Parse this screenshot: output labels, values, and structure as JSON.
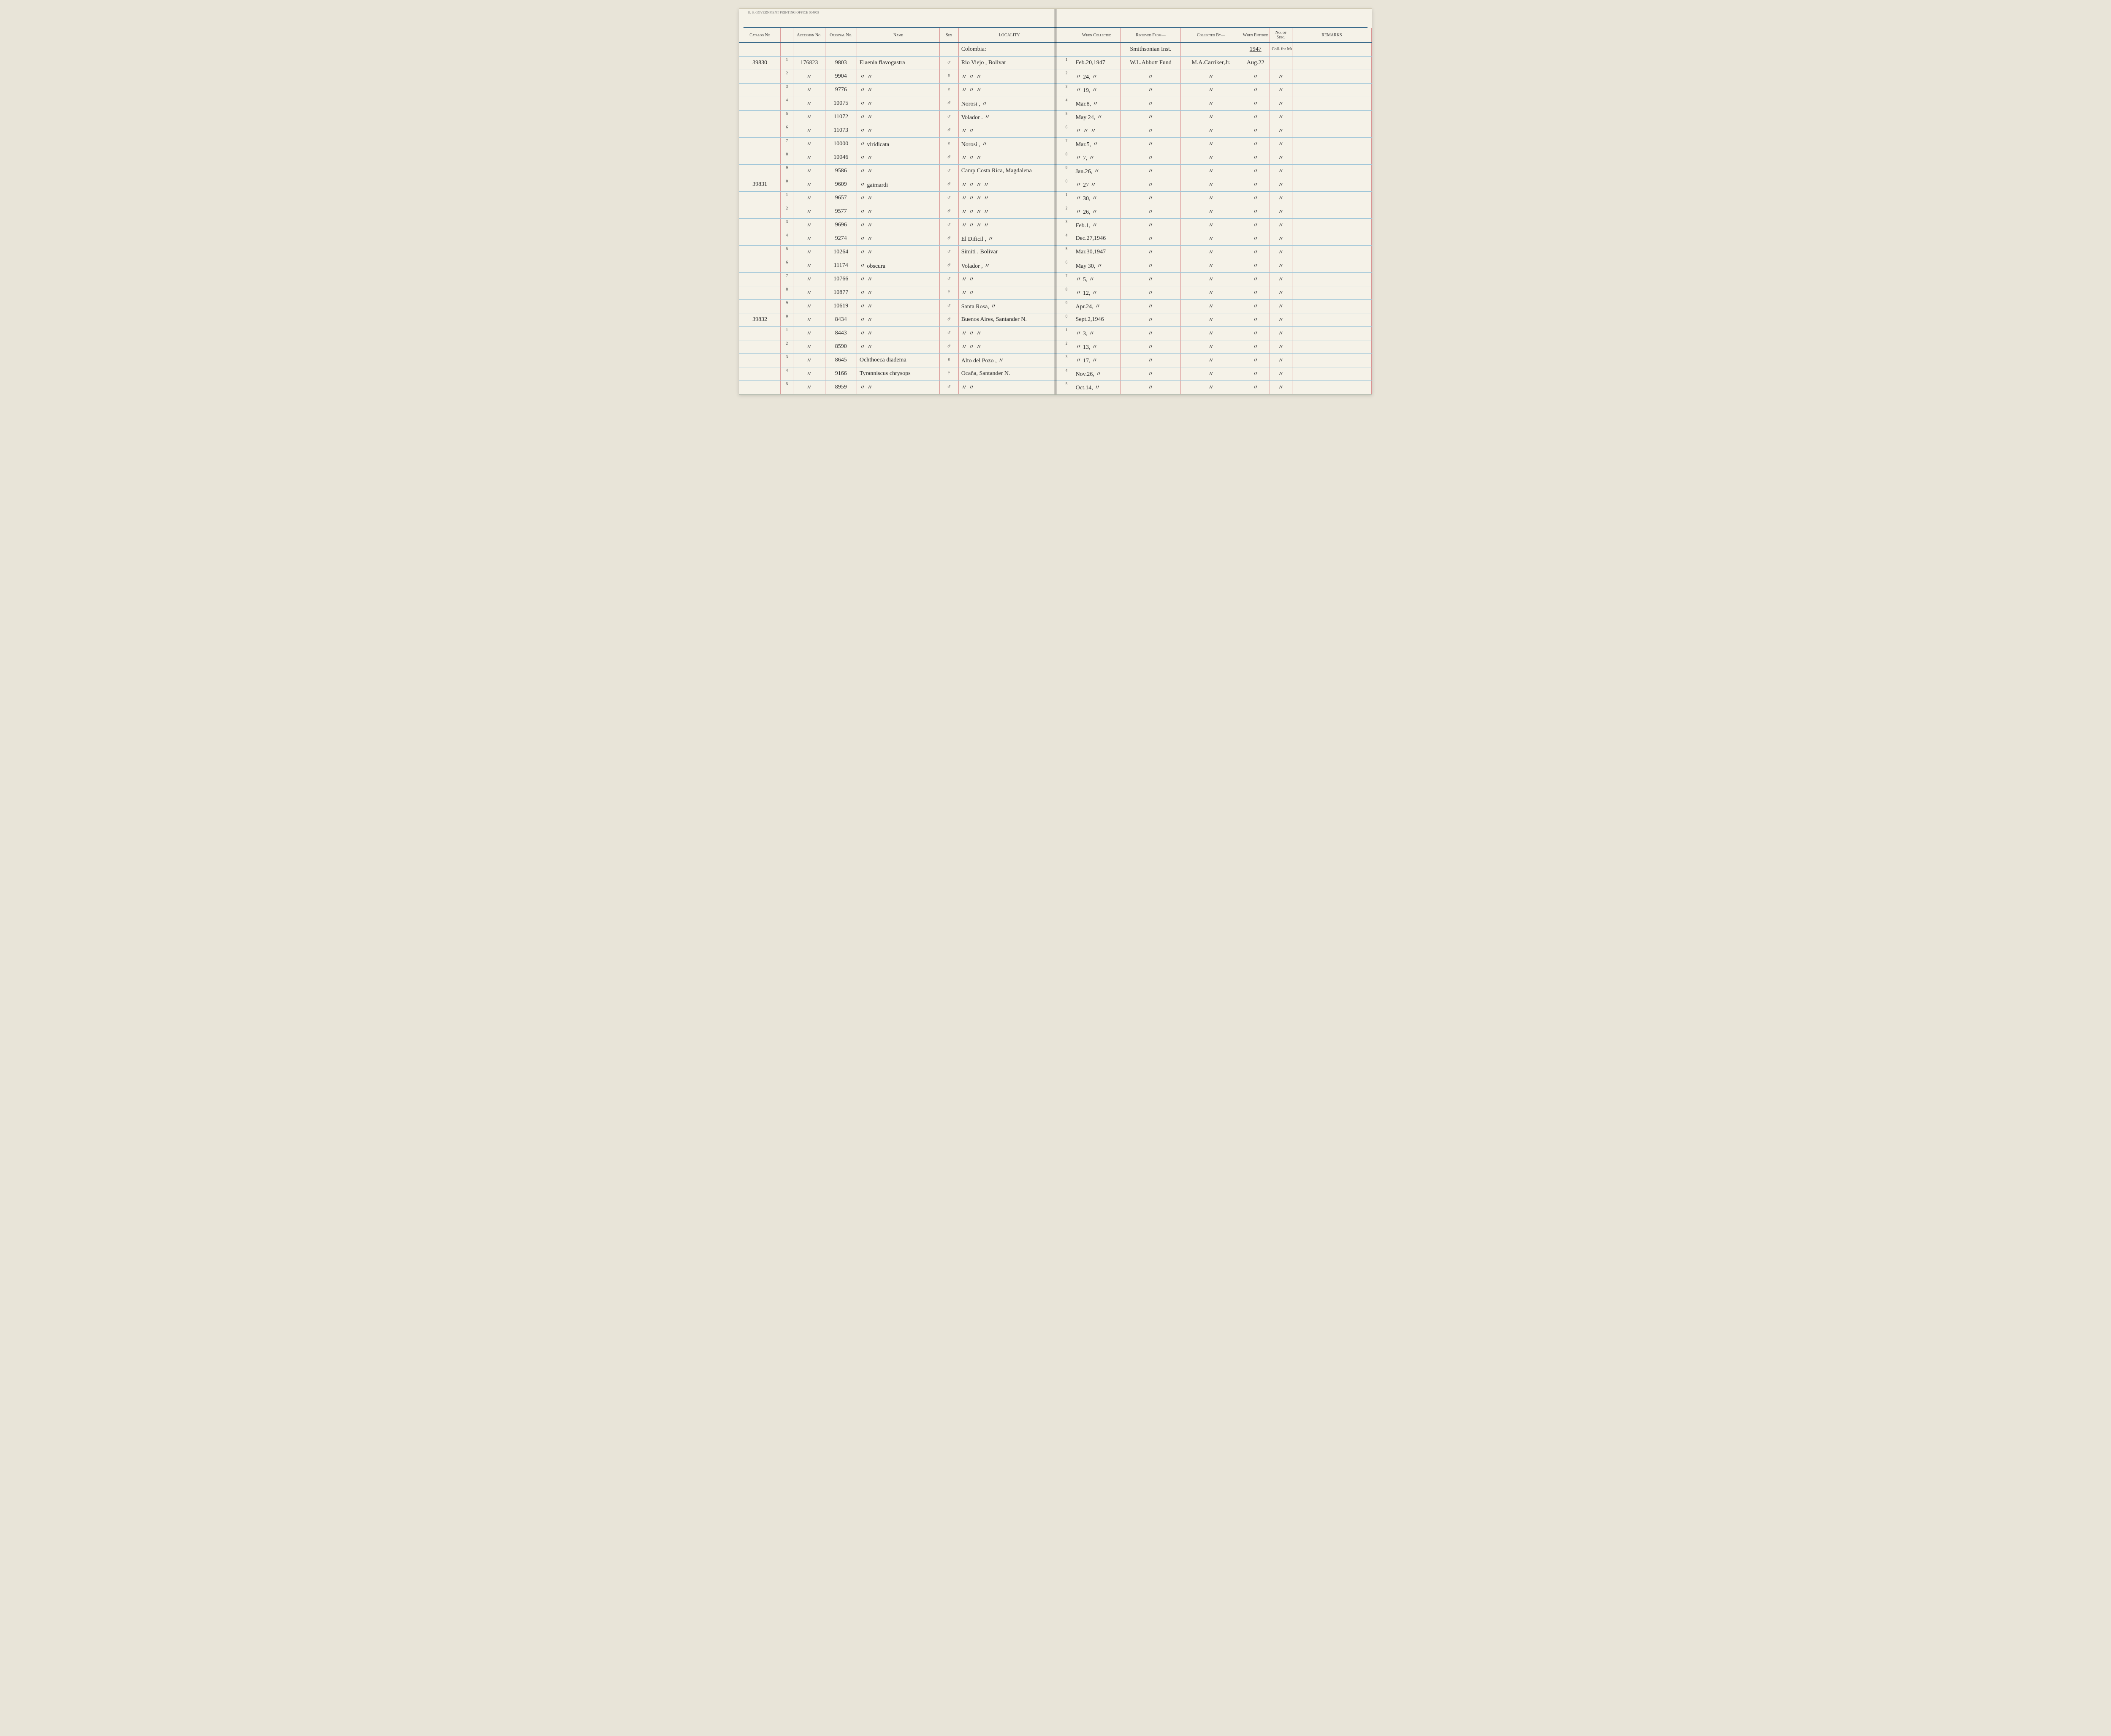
{
  "footer_text": "U. S. GOVERNMENT PRINTING OFFICE   054903",
  "columns": [
    "Catalog No",
    "",
    "Accession No.",
    "Original No.",
    "Name",
    "Sex",
    "LOCALITY",
    "",
    "When Collected",
    "Received From—",
    "Collected By—",
    "When Entered",
    "No. of Spec.",
    "REMARKS"
  ],
  "header_row": {
    "locality": "Colombia:",
    "received": "Smithsonian Inst.",
    "entered": "1947",
    "spec": "Coll. for Mus."
  },
  "rows": [
    {
      "cat": "39830",
      "sub": "1",
      "acc": "176823",
      "orig": "9803",
      "name": "Elaenia flavogastra",
      "sex": "♂",
      "loc": "Rio Viejo , Bolivar",
      "sub2": "1",
      "when": "Feb.20,1947",
      "recv": "W.L.Abbott Fund",
      "collby": "M.A.Carriker,Jr.",
      "ent": "Aug.22",
      "spec": "",
      "rem": ""
    },
    {
      "cat": "",
      "sub": "2",
      "acc": "〃",
      "orig": "9904",
      "name": "〃        〃",
      "sex": "♀",
      "loc": "〃   〃     〃",
      "sub2": "2",
      "when": "〃 24, 〃",
      "recv": "〃",
      "collby": "〃",
      "ent": "〃",
      "spec": "〃",
      "rem": ""
    },
    {
      "cat": "",
      "sub": "3",
      "acc": "〃",
      "orig": "9776",
      "name": "〃        〃",
      "sex": "♀",
      "loc": "〃   〃     〃",
      "sub2": "3",
      "when": "〃 19, 〃",
      "recv": "〃",
      "collby": "〃",
      "ent": "〃",
      "spec": "〃",
      "rem": ""
    },
    {
      "cat": "",
      "sub": "4",
      "acc": "〃",
      "orig": "10075",
      "name": "〃        〃",
      "sex": "♂",
      "loc": "Norosi ,       〃",
      "sub2": "4",
      "when": "Mar.8, 〃",
      "recv": "〃",
      "collby": "〃",
      "ent": "〃",
      "spec": "〃",
      "rem": ""
    },
    {
      "cat": "",
      "sub": "5",
      "acc": "〃",
      "orig": "11072",
      "name": "〃        〃",
      "sex": "♂",
      "loc": "Volador .   〃",
      "sub2": "5",
      "when": "May 24, 〃",
      "recv": "〃",
      "collby": "〃",
      "ent": "〃",
      "spec": "〃",
      "rem": ""
    },
    {
      "cat": "",
      "sub": "6",
      "acc": "〃",
      "orig": "11073",
      "name": "〃        〃",
      "sex": "♂",
      "loc": "〃           〃",
      "sub2": "6",
      "when": "〃  〃  〃",
      "recv": "〃",
      "collby": "〃",
      "ent": "〃",
      "spec": "〃",
      "rem": ""
    },
    {
      "cat": "",
      "sub": "7",
      "acc": "〃",
      "orig": "10000",
      "name": "〃    viridicata",
      "sex": "♀",
      "loc": "Norosi ,     〃",
      "sub2": "7",
      "when": "Mar.5, 〃",
      "recv": "〃",
      "collby": "〃",
      "ent": "〃",
      "spec": "〃",
      "rem": ""
    },
    {
      "cat": "",
      "sub": "8",
      "acc": "〃",
      "orig": "10046",
      "name": "〃        〃",
      "sex": "♂",
      "loc": "〃     〃     〃",
      "sub2": "8",
      "when": "〃 7, 〃",
      "recv": "〃",
      "collby": "〃",
      "ent": "〃",
      "spec": "〃",
      "rem": ""
    },
    {
      "cat": "",
      "sub": "9",
      "acc": "〃",
      "orig": "9586",
      "name": "〃        〃",
      "sex": "♂",
      "loc": "Camp Costa Rica, Magdalena",
      "sub2": "9",
      "when": "Jan.26, 〃",
      "recv": "〃",
      "collby": "〃",
      "ent": "〃",
      "spec": "〃",
      "rem": ""
    },
    {
      "cat": "39831",
      "sub": "0",
      "acc": "〃",
      "orig": "9609",
      "name": "〃    gaimardi",
      "sex": "♂",
      "loc": "〃   〃   〃     〃",
      "sub2": "0",
      "when": "〃 27 〃",
      "recv": "〃",
      "collby": "〃",
      "ent": "〃",
      "spec": "〃",
      "rem": ""
    },
    {
      "cat": "",
      "sub": "1",
      "acc": "〃",
      "orig": "9657",
      "name": "〃        〃",
      "sex": "♂",
      "loc": "〃   〃   〃     〃",
      "sub2": "1",
      "when": "〃 30, 〃",
      "recv": "〃",
      "collby": "〃",
      "ent": "〃",
      "spec": "〃",
      "rem": ""
    },
    {
      "cat": "",
      "sub": "2",
      "acc": "〃",
      "orig": "9577",
      "name": "〃        〃",
      "sex": "♂",
      "loc": "〃   〃   〃     〃",
      "sub2": "2",
      "when": "〃 26, 〃",
      "recv": "〃",
      "collby": "〃",
      "ent": "〃",
      "spec": "〃",
      "rem": ""
    },
    {
      "cat": "",
      "sub": "3",
      "acc": "〃",
      "orig": "9696",
      "name": "〃        〃",
      "sex": "♂",
      "loc": "〃   〃   〃     〃",
      "sub2": "3",
      "when": "Feb.1, 〃",
      "recv": "〃",
      "collby": "〃",
      "ent": "〃",
      "spec": "〃",
      "rem": ""
    },
    {
      "cat": "",
      "sub": "4",
      "acc": "〃",
      "orig": "9274",
      "name": "〃        〃",
      "sex": "♂",
      "loc": "El Dificil ,        〃",
      "sub2": "4",
      "when": "Dec.27,1946",
      "recv": "〃",
      "collby": "〃",
      "ent": "〃",
      "spec": "〃",
      "rem": ""
    },
    {
      "cat": "",
      "sub": "5",
      "acc": "〃",
      "orig": "10264",
      "name": "〃        〃",
      "sex": "♂",
      "loc": "Simiti , Bolivar",
      "sub2": "5",
      "when": "Mar.30,1947",
      "recv": "〃",
      "collby": "〃",
      "ent": "〃",
      "spec": "〃",
      "rem": ""
    },
    {
      "cat": "",
      "sub": "6",
      "acc": "〃",
      "orig": "11174",
      "name": "〃    obscura",
      "sex": "♂",
      "loc": "Volador ,   〃",
      "sub2": "6",
      "when": "May 30, 〃",
      "recv": "〃",
      "collby": "〃",
      "ent": "〃",
      "spec": "〃",
      "rem": ""
    },
    {
      "cat": "",
      "sub": "7",
      "acc": "〃",
      "orig": "10766",
      "name": "〃        〃",
      "sex": "♂",
      "loc": "〃           〃",
      "sub2": "7",
      "when": "〃 5, 〃",
      "recv": "〃",
      "collby": "〃",
      "ent": "〃",
      "spec": "〃",
      "rem": ""
    },
    {
      "cat": "",
      "sub": "8",
      "acc": "〃",
      "orig": "10877",
      "name": "〃        〃",
      "sex": "♀",
      "loc": "〃           〃",
      "sub2": "8",
      "when": "〃 12, 〃",
      "recv": "〃",
      "collby": "〃",
      "ent": "〃",
      "spec": "〃",
      "rem": ""
    },
    {
      "cat": "",
      "sub": "9",
      "acc": "〃",
      "orig": "10619",
      "name": "〃        〃",
      "sex": "♂",
      "loc": "Santa Rosa, 〃",
      "sub2": "9",
      "when": "Apr.24,  〃",
      "recv": "〃",
      "collby": "〃",
      "ent": "〃",
      "spec": "〃",
      "rem": ""
    },
    {
      "cat": "39832",
      "sub": "0",
      "acc": "〃",
      "orig": "8434",
      "name": "〃        〃",
      "sex": "♂",
      "loc": "Buenos Aires, Santander N.",
      "sub2": "0",
      "when": "Sept.2,1946",
      "recv": "〃",
      "collby": "〃",
      "ent": "〃",
      "spec": "〃",
      "rem": ""
    },
    {
      "cat": "",
      "sub": "1",
      "acc": "〃",
      "orig": "8443",
      "name": "〃        〃",
      "sex": "♂",
      "loc": "〃   〃       〃",
      "sub2": "1",
      "when": "〃 3, 〃",
      "recv": "〃",
      "collby": "〃",
      "ent": "〃",
      "spec": "〃",
      "rem": ""
    },
    {
      "cat": "",
      "sub": "2",
      "acc": "〃",
      "orig": "8590",
      "name": "〃        〃",
      "sex": "♂",
      "loc": "〃   〃       〃",
      "sub2": "2",
      "when": "〃 13, 〃",
      "recv": "〃",
      "collby": "〃",
      "ent": "〃",
      "spec": "〃",
      "rem": ""
    },
    {
      "cat": "",
      "sub": "3",
      "acc": "〃",
      "orig": "8645",
      "name": "Ochthoeca diadema",
      "sex": "♀",
      "loc": "Alto del Pozo ,    〃",
      "sub2": "3",
      "when": "〃 17, 〃",
      "recv": "〃",
      "collby": "〃",
      "ent": "〃",
      "spec": "〃",
      "rem": ""
    },
    {
      "cat": "",
      "sub": "4",
      "acc": "〃",
      "orig": "9166",
      "name": "Tyranniscus chrysops",
      "sex": "♀",
      "loc": "Ocaña, Santander N.",
      "sub2": "4",
      "when": "Nov.26, 〃",
      "recv": "〃",
      "collby": "〃",
      "ent": "〃",
      "spec": "〃",
      "rem": ""
    },
    {
      "cat": "",
      "sub": "5",
      "acc": "〃",
      "orig": "8959",
      "name": "〃        〃",
      "sex": "♂",
      "loc": "〃        〃",
      "sub2": "5",
      "when": "Oct.14, 〃",
      "recv": "〃",
      "collby": "〃",
      "ent": "〃",
      "spec": "〃",
      "rem": ""
    }
  ]
}
